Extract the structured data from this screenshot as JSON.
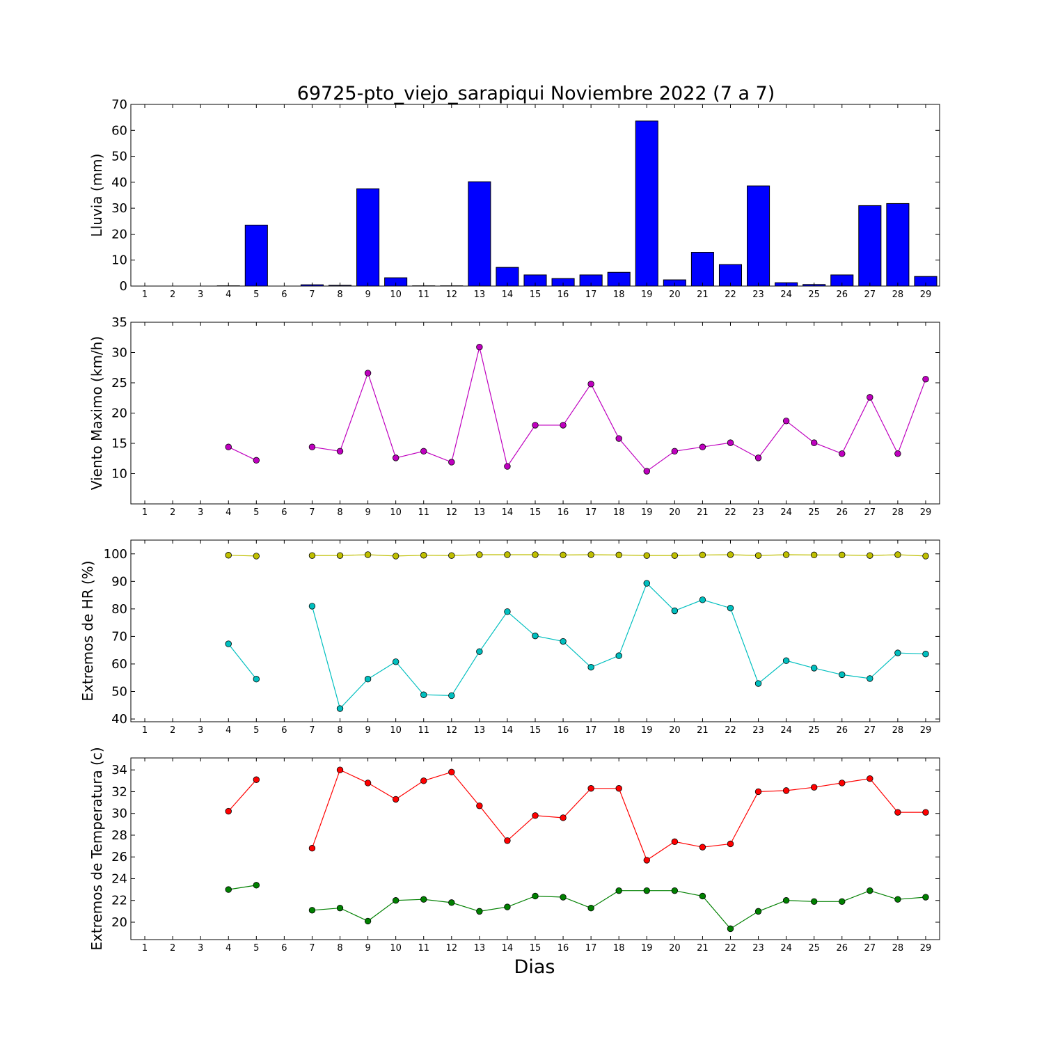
{
  "title": "69725-pto_viejo_sarapiqui Noviembre 2022  (7 a 7)",
  "xlabel": "Dias",
  "colors": {
    "rain": "#0000ff",
    "wind": "#bf00bf",
    "hr_max": "#bfbf00",
    "hr_min": "#00bfbf",
    "temp_max": "#ff0000",
    "temp_min": "#008000"
  },
  "chart_data": [
    {
      "type": "bar",
      "ylabel": "Lluvia (mm)",
      "ylim": [
        0,
        70
      ],
      "yticks": [
        0,
        10,
        20,
        30,
        40,
        50,
        60,
        70
      ],
      "categories": [
        1,
        2,
        3,
        4,
        5,
        6,
        7,
        8,
        9,
        10,
        11,
        12,
        13,
        14,
        15,
        16,
        17,
        18,
        19,
        20,
        21,
        22,
        23,
        24,
        25,
        26,
        27,
        28,
        29
      ],
      "values": [
        0,
        0,
        0,
        0.1,
        23.5,
        0,
        0.5,
        0.3,
        37.5,
        3.2,
        0.1,
        0.1,
        40.2,
        7.2,
        4.3,
        2.9,
        4.3,
        5.3,
        63.6,
        2.4,
        13.0,
        8.3,
        38.6,
        1.3,
        0.6,
        4.3,
        31.0,
        31.8,
        3.7
      ]
    },
    {
      "type": "line",
      "ylabel": "Viento Maximo (km/h)",
      "ylim": [
        5,
        35
      ],
      "yticks": [
        10,
        15,
        20,
        25,
        30,
        35
      ],
      "categories": [
        1,
        2,
        3,
        4,
        5,
        6,
        7,
        8,
        9,
        10,
        11,
        12,
        13,
        14,
        15,
        16,
        17,
        18,
        19,
        20,
        21,
        22,
        23,
        24,
        25,
        26,
        27,
        28,
        29
      ],
      "series": [
        {
          "values": [
            null,
            null,
            null,
            14.4,
            12.2,
            null,
            14.4,
            13.7,
            26.6,
            12.6,
            13.7,
            11.9,
            30.9,
            11.2,
            18.0,
            18.0,
            24.8,
            15.8,
            10.4,
            13.7,
            14.4,
            15.1,
            12.6,
            18.7,
            15.1,
            13.3,
            22.6,
            13.3,
            25.6
          ]
        }
      ]
    },
    {
      "type": "line",
      "ylabel": "Extremos de HR (%)",
      "ylim": [
        39,
        105
      ],
      "yticks": [
        40,
        50,
        60,
        70,
        80,
        90,
        100
      ],
      "categories": [
        1,
        2,
        3,
        4,
        5,
        6,
        7,
        8,
        9,
        10,
        11,
        12,
        13,
        14,
        15,
        16,
        17,
        18,
        19,
        20,
        21,
        22,
        23,
        24,
        25,
        26,
        27,
        28,
        29
      ],
      "series": [
        {
          "values": [
            null,
            null,
            null,
            99.5,
            99.2,
            null,
            99.4,
            99.4,
            99.7,
            99.2,
            99.5,
            99.4,
            99.7,
            99.7,
            99.7,
            99.6,
            99.7,
            99.6,
            99.4,
            99.4,
            99.6,
            99.7,
            99.4,
            99.7,
            99.6,
            99.6,
            99.4,
            99.7,
            99.2
          ]
        },
        {
          "values": [
            null,
            null,
            null,
            67.3,
            54.5,
            null,
            81.0,
            43.8,
            54.5,
            60.8,
            48.8,
            48.5,
            64.5,
            79.0,
            70.2,
            68.2,
            58.8,
            63.0,
            89.3,
            79.3,
            83.3,
            80.3,
            52.9,
            61.2,
            58.5,
            56.1,
            54.7,
            64.0,
            63.6
          ]
        }
      ]
    },
    {
      "type": "line",
      "ylabel": "Extremos de Temperatura (c)",
      "ylim": [
        18.4,
        35.1
      ],
      "yticks": [
        20,
        22,
        24,
        26,
        28,
        30,
        32,
        34
      ],
      "categories": [
        1,
        2,
        3,
        4,
        5,
        6,
        7,
        8,
        9,
        10,
        11,
        12,
        13,
        14,
        15,
        16,
        17,
        18,
        19,
        20,
        21,
        22,
        23,
        24,
        25,
        26,
        27,
        28,
        29
      ],
      "series": [
        {
          "values": [
            null,
            null,
            null,
            30.2,
            33.1,
            null,
            26.8,
            34.0,
            32.8,
            31.3,
            33.0,
            33.8,
            30.7,
            27.5,
            29.8,
            29.6,
            32.3,
            32.3,
            25.7,
            27.4,
            26.9,
            27.2,
            32.0,
            32.1,
            32.4,
            32.8,
            33.2,
            30.1,
            30.1
          ]
        },
        {
          "values": [
            null,
            null,
            null,
            23.0,
            23.4,
            null,
            21.1,
            21.3,
            20.1,
            22.0,
            22.1,
            21.8,
            21.0,
            21.4,
            22.4,
            22.3,
            21.3,
            22.9,
            22.9,
            22.9,
            22.4,
            19.4,
            21.0,
            22.0,
            21.9,
            21.9,
            22.9,
            22.1,
            22.3
          ]
        }
      ]
    }
  ]
}
